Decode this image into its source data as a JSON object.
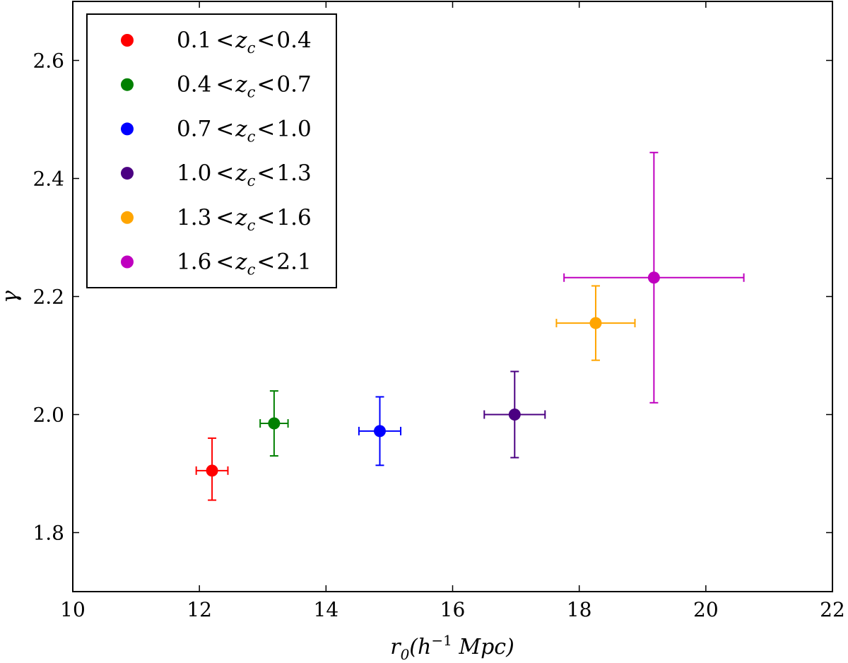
{
  "chart_data": {
    "type": "scatter",
    "title": "",
    "xlabel": "r0(h^-1 Mpc)",
    "xlabel_main": "r",
    "xlabel_sub": "0",
    "xlabel_open": "(h",
    "xlabel_sup": "−1",
    "xlabel_close": " Mpc)",
    "ylabel": "γ",
    "xlim": [
      10,
      22
    ],
    "ylim": [
      1.7,
      2.7
    ],
    "xticks": [
      10,
      12,
      14,
      16,
      18,
      20,
      22
    ],
    "xtick_labels": [
      "10",
      "12",
      "14",
      "16",
      "18",
      "20",
      "22"
    ],
    "yticks": [
      1.8,
      2.0,
      2.2,
      2.4,
      2.6
    ],
    "ytick_labels": [
      "1.8",
      "2.0",
      "2.2",
      "2.4",
      "2.6"
    ],
    "grid": false,
    "legend_position": "top-left",
    "series": [
      {
        "name": "0.1<z_c<0.4",
        "lo": "0.1",
        "hi": "0.4",
        "color": "#ff0000",
        "x": 12.2,
        "y": 1.905,
        "xerr": 0.25,
        "yerr_low": 0.05,
        "yerr_high": 0.055
      },
      {
        "name": "0.4<z_c<0.7",
        "lo": "0.4",
        "hi": "0.7",
        "color": "#008000",
        "x": 13.18,
        "y": 1.985,
        "xerr": 0.22,
        "yerr_low": 0.055,
        "yerr_high": 0.055
      },
      {
        "name": "0.7<z_c<1.0",
        "lo": "0.7",
        "hi": "1.0",
        "color": "#0000ff",
        "x": 14.85,
        "y": 1.972,
        "xerr": 0.33,
        "yerr_low": 0.058,
        "yerr_high": 0.058
      },
      {
        "name": "1.0<z_c<1.3",
        "lo": "1.0",
        "hi": "1.3",
        "color": "#4b0082",
        "x": 16.98,
        "y": 2.0,
        "xerr": 0.48,
        "yerr_low": 0.073,
        "yerr_high": 0.073
      },
      {
        "name": "1.3<z_c<1.6",
        "lo": "1.3",
        "hi": "1.6",
        "color": "#ffa500",
        "x": 18.26,
        "y": 2.155,
        "xerr": 0.62,
        "yerr_low": 0.063,
        "yerr_high": 0.063
      },
      {
        "name": "1.6<z_c<2.1",
        "lo": "1.6",
        "hi": "2.1",
        "color": "#bf00bf",
        "x": 19.18,
        "y": 2.232,
        "xerr_low": 1.42,
        "xerr_high": 1.42,
        "yerr_low": 0.212,
        "yerr_high": 0.212
      }
    ],
    "legend_z_symbol": "z",
    "legend_z_sub": "c",
    "legend_lt": "<"
  }
}
